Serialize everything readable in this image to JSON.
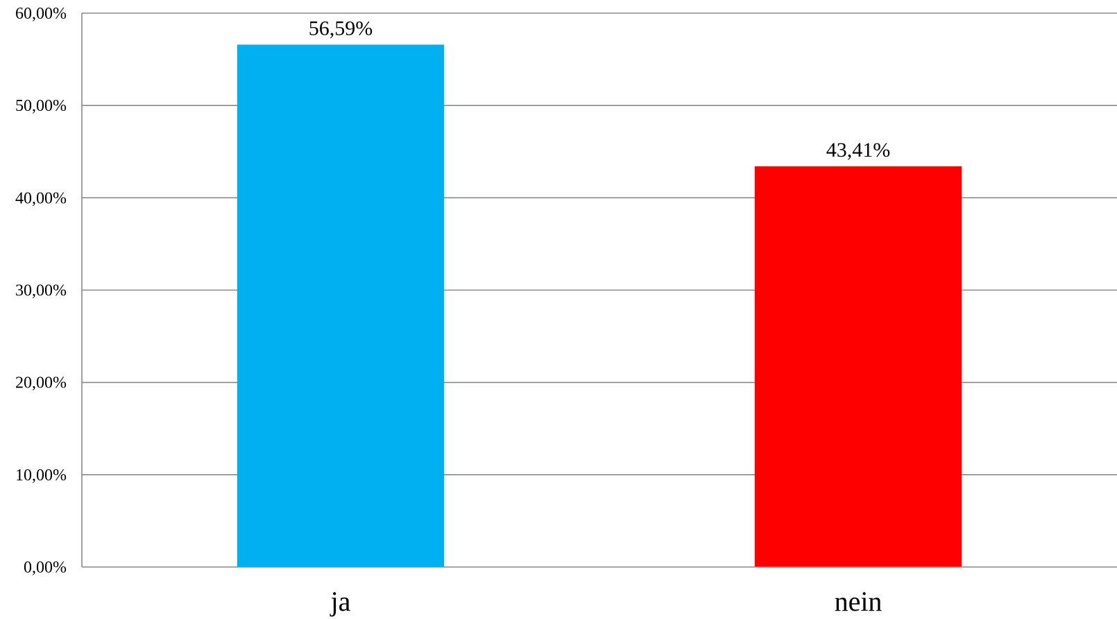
{
  "chart_data": {
    "type": "bar",
    "categories": [
      "ja",
      "nein"
    ],
    "values": [
      56.59,
      43.41
    ],
    "data_labels": [
      "56,59%",
      "43,41%"
    ],
    "colors": [
      "#00B0F0",
      "#FF0000"
    ],
    "ylim": [
      0,
      60
    ],
    "yticks": [
      0,
      10,
      20,
      30,
      40,
      50,
      60
    ],
    "ytick_labels": [
      "0,00%",
      "10,00%",
      "20,00%",
      "30,00%",
      "40,00%",
      "50,00%",
      "60,00%"
    ],
    "grid": true,
    "legend": false,
    "gridline_color": "#888888"
  }
}
